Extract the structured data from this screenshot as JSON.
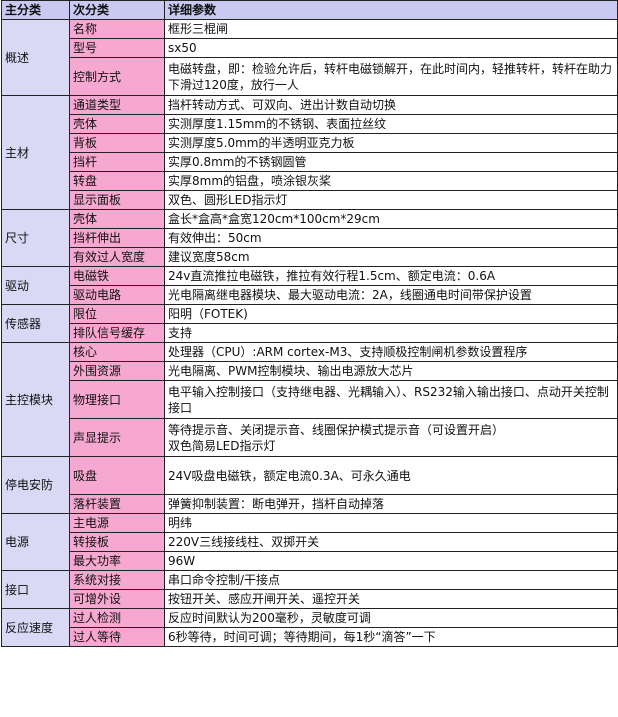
{
  "headers": [
    "主分类",
    "次分类",
    "详细参数"
  ],
  "groups": [
    {
      "category": "概述",
      "rows": [
        {
          "sub": "名称",
          "value": "框形三棍闸"
        },
        {
          "sub": "型号",
          "value": "sx50"
        },
        {
          "sub": "控制方式",
          "value": "电磁转盘，即：检验允许后，转杆电磁锁解开，在此时间内，轻推转杆，转杆在助力下滑过120度，放行一人"
        }
      ]
    },
    {
      "category": "主材",
      "rows": [
        {
          "sub": "通道类型",
          "value": "挡杆转动方式、可双向、进出计数自动切换"
        },
        {
          "sub": "壳体",
          "value": "实测厚度1.15mm的不锈钢、表面拉丝纹"
        },
        {
          "sub": "背板",
          "value": "实测厚度5.0mm的半透明亚克力板"
        },
        {
          "sub": "挡杆",
          "value": "实厚0.8mm的不锈钢圆管"
        },
        {
          "sub": "转盘",
          "value": "实厚8mm的铝盘，喷涂银灰桨"
        },
        {
          "sub": "显示面板",
          "value": "双色、圆形LED指示灯"
        }
      ]
    },
    {
      "category": "尺寸",
      "rows": [
        {
          "sub": "壳体",
          "value": "盒长*盒高*盒宽120cm*100cm*29cm"
        },
        {
          "sub": "挡杆伸出",
          "value": "有效伸出：50cm"
        },
        {
          "sub": "有效过人宽度",
          "value": "建议宽度58cm"
        }
      ]
    },
    {
      "category": "驱动",
      "rows": [
        {
          "sub": "电磁铁",
          "value": "24v直流推拉电磁铁，推拉有效行程1.5cm、额定电流：0.6A"
        },
        {
          "sub": "驱动电路",
          "value": "光电隔离继电器模块、最大驱动电流：2A，线圈通电时间带保护设置"
        }
      ]
    },
    {
      "category": "传感器",
      "rows": [
        {
          "sub": "限位",
          "value": "阳明（FOTEK)"
        },
        {
          "sub": "排队信号缓存",
          "value": "支持"
        }
      ]
    },
    {
      "category": "主控模块",
      "rows": [
        {
          "sub": "核心",
          "value": "处理器（CPU）:ARM cortex-M3、支持顺极控制闸机参数设置程序"
        },
        {
          "sub": "外围资源",
          "value": "光电隔离、PWM控制模块、输出电源放大芯片"
        },
        {
          "sub": "物理接口",
          "value": "电平输入控制接口（支持继电器、光耦输入）、RS232输入输出接口、点动开关控制接口"
        },
        {
          "sub": "声显提示",
          "value": "等待提示音、关闭提示音、线圈保护模式提示音（可设置开启）\n双色简易LED指示灯"
        }
      ]
    },
    {
      "category": "停电安防",
      "rows": [
        {
          "sub": "吸盘",
          "value": "24V吸盘电磁铁，额定电流0.3A、可永久通电"
        },
        {
          "sub": "落杆装置",
          "value": "弹簧抑制装置：断电弹开，挡杆自动掉落"
        }
      ]
    },
    {
      "category": "电源",
      "rows": [
        {
          "sub": "主电源",
          "value": "明纬"
        },
        {
          "sub": "转接板",
          "value": "220V三线接线柱、双掷开关"
        },
        {
          "sub": "最大功率",
          "value": "96W"
        }
      ]
    },
    {
      "category": "接口",
      "rows": [
        {
          "sub": "系统对接",
          "value": "串口命令控制/干接点"
        },
        {
          "sub": "可增外设",
          "value": "按钮开关、感应开闸开关、遥控开关"
        }
      ]
    },
    {
      "category": "反应速度",
      "rows": [
        {
          "sub": "过人检测",
          "value": "反应时间默认为200毫秒，灵敏度可调"
        },
        {
          "sub": "过人等待",
          "value": "6秒等待，时间可调；等待期间，每1秒“滴答”一下"
        }
      ]
    }
  ]
}
